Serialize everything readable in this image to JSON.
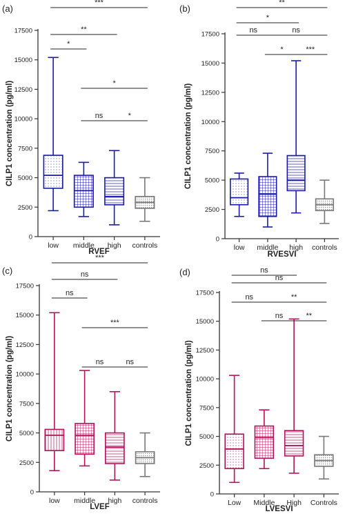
{
  "chart_data": [
    {
      "type": "box",
      "panel_label": "(a)",
      "ylabel": "CILP1 concentration (pg/ml)",
      "xlabel": "RVEF",
      "ylim": [
        0,
        17500
      ],
      "yticks": [
        "0",
        "2500",
        "5000",
        "7500",
        "10000",
        "12500",
        "15000",
        "17500"
      ],
      "categories": [
        "low",
        "middle",
        "high",
        "controls"
      ],
      "boxes": [
        {
          "min": 2200,
          "q1": 4100,
          "median": 5200,
          "q3": 6900,
          "max": 15200,
          "color": "#1a1aa6",
          "hatch": "dots"
        },
        {
          "min": 1700,
          "q1": 2500,
          "median": 3900,
          "q3": 5200,
          "max": 6300,
          "color": "#1a1aa6",
          "hatch": "grid"
        },
        {
          "min": 1000,
          "q1": 2700,
          "median": 3400,
          "q3": 5000,
          "max": 7300,
          "color": "#1a1aa6",
          "hatch": "hlines"
        },
        {
          "min": 1300,
          "q1": 2400,
          "median": 2900,
          "q3": 3400,
          "max": 5000,
          "color": "#777777",
          "hatch": "grayfine"
        }
      ],
      "comparisons": [
        {
          "from": 0,
          "to": 3,
          "label": "***"
        },
        {
          "from": 0,
          "to": 2,
          "label": "**"
        },
        {
          "from": 0,
          "to": 1,
          "label": "*"
        },
        {
          "from": 1,
          "to": 3,
          "label": "*"
        },
        {
          "from": 1,
          "to": 2,
          "label": "ns"
        },
        {
          "from": 2,
          "to": 3,
          "label": "*"
        }
      ]
    },
    {
      "type": "box",
      "panel_label": "(b)",
      "ylabel": "CILP1 concentration (pg/ml)",
      "xlabel": "RVESVI",
      "ylim": [
        0,
        17500
      ],
      "yticks": [
        "0",
        "2500",
        "5000",
        "7500",
        "10000",
        "12500",
        "15000",
        "17500"
      ],
      "categories": [
        "low",
        "middle",
        "high",
        "controls"
      ],
      "boxes": [
        {
          "min": 1900,
          "q1": 2900,
          "median": 3500,
          "q3": 5100,
          "max": 5600,
          "color": "#1a1aa6",
          "hatch": "dots"
        },
        {
          "min": 1000,
          "q1": 1900,
          "median": 3800,
          "q3": 5300,
          "max": 7300,
          "color": "#1a1aa6",
          "hatch": "grid"
        },
        {
          "min": 2200,
          "q1": 4100,
          "median": 5000,
          "q3": 7100,
          "max": 15200,
          "color": "#1a1aa6",
          "hatch": "hlines"
        },
        {
          "min": 1300,
          "q1": 2400,
          "median": 2900,
          "q3": 3400,
          "max": 5000,
          "color": "#777777",
          "hatch": "grayfine"
        }
      ],
      "comparisons": [
        {
          "from": 0,
          "to": 3,
          "label": "**"
        },
        {
          "from": 0,
          "to": 2,
          "label": "*"
        },
        {
          "from": 0,
          "to": 1,
          "label": "ns"
        },
        {
          "from": 1,
          "to": 3,
          "label": "ns"
        },
        {
          "from": 1,
          "to": 2,
          "label": "*"
        },
        {
          "from": 2,
          "to": 3,
          "label": "***"
        }
      ]
    },
    {
      "type": "box",
      "panel_label": "(c)",
      "ylabel": "CILP1 concentration (pg/ml)",
      "xlabel": "LVEF",
      "ylim": [
        0,
        17500
      ],
      "yticks": [
        "0",
        "2500",
        "5000",
        "7500",
        "10000",
        "12500",
        "15000",
        "17500"
      ],
      "categories": [
        "low",
        "middle",
        "high",
        "controls"
      ],
      "boxes": [
        {
          "min": 1800,
          "q1": 3500,
          "median": 4800,
          "q3": 5300,
          "max": 15200,
          "color": "#b0125a",
          "hatch": "vlines"
        },
        {
          "min": 2200,
          "q1": 3200,
          "median": 4800,
          "q3": 5800,
          "max": 10300,
          "color": "#b0125a",
          "hatch": "grid"
        },
        {
          "min": 1000,
          "q1": 2400,
          "median": 3800,
          "q3": 5000,
          "max": 8500,
          "color": "#b0125a",
          "hatch": "hlines"
        },
        {
          "min": 1300,
          "q1": 2400,
          "median": 2900,
          "q3": 3400,
          "max": 5000,
          "color": "#777777",
          "hatch": "grayfine"
        }
      ],
      "comparisons": [
        {
          "from": 0,
          "to": 3,
          "label": "***"
        },
        {
          "from": 0,
          "to": 2,
          "label": "ns"
        },
        {
          "from": 0,
          "to": 1,
          "label": "ns"
        },
        {
          "from": 1,
          "to": 3,
          "label": "***"
        },
        {
          "from": 1,
          "to": 2,
          "label": "ns"
        },
        {
          "from": 2,
          "to": 3,
          "label": "ns"
        }
      ]
    },
    {
      "type": "box",
      "panel_label": "(d)",
      "ylabel": "CILP1 concentration (pg/ml)",
      "xlabel": "LVESVI",
      "ylim": [
        0,
        17500
      ],
      "yticks": [
        "0",
        "2500",
        "5000",
        "7500",
        "10000",
        "12500",
        "15000",
        "17500"
      ],
      "categories": [
        "Low",
        "Middle",
        "High",
        "Controls"
      ],
      "boxes": [
        {
          "min": 1000,
          "q1": 2200,
          "median": 3900,
          "q3": 5200,
          "max": 10300,
          "color": "#b0125a",
          "hatch": "dots"
        },
        {
          "min": 2200,
          "q1": 3100,
          "median": 4900,
          "q3": 5900,
          "max": 7300,
          "color": "#b0125a",
          "hatch": "grid"
        },
        {
          "min": 1800,
          "q1": 3300,
          "median": 4200,
          "q3": 5500,
          "max": 15200,
          "color": "#b0125a",
          "hatch": "hlines"
        },
        {
          "min": 1300,
          "q1": 2400,
          "median": 2900,
          "q3": 3400,
          "max": 5000,
          "color": "#777777",
          "hatch": "grayfine"
        }
      ],
      "comparisons": [
        {
          "from": 0,
          "to": 2,
          "label": "ns"
        },
        {
          "from": 0,
          "to": 3,
          "label": "ns"
        },
        {
          "from": 0,
          "to": 1,
          "label": "ns"
        },
        {
          "from": 1,
          "to": 3,
          "label": "**"
        },
        {
          "from": 1,
          "to": 2,
          "label": "ns"
        },
        {
          "from": 2,
          "to": 3,
          "label": "**"
        }
      ]
    }
  ]
}
